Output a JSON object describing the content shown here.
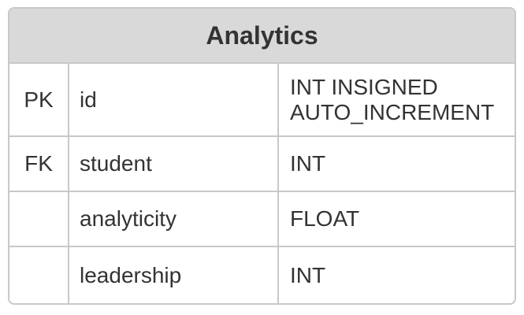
{
  "entity": {
    "title": "Analytics",
    "rows": [
      {
        "key": "PK",
        "name": "id",
        "type": "INT INSIGNED\nAUTO_INCREMENT"
      },
      {
        "key": "FK",
        "name": "student",
        "type": "INT"
      },
      {
        "key": "",
        "name": "analyticity",
        "type": "FLOAT"
      },
      {
        "key": "",
        "name": "leadership",
        "type": "INT"
      }
    ]
  },
  "colors": {
    "header_bg": "#d9d9d9",
    "border": "#c8c8c8",
    "text": "#333333"
  }
}
